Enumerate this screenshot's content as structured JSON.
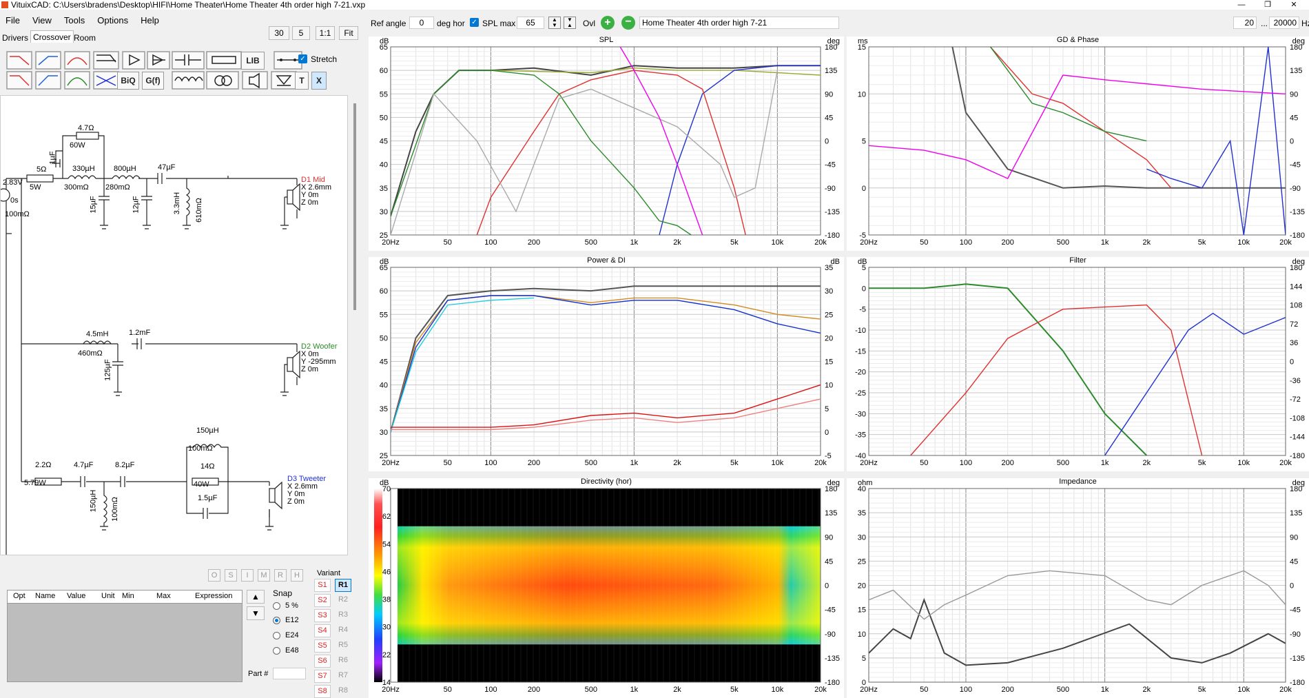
{
  "window": {
    "title": "VituixCAD: C:\\Users\\bradens\\Desktop\\HIFI\\Home Theater\\Home Theater 4th order high 7-21.vxp"
  },
  "menu": [
    "File",
    "View",
    "Tools",
    "Options",
    "Help"
  ],
  "tabs": [
    "Drivers",
    "Crossover",
    "Room"
  ],
  "left_buttons": {
    "b30": "30",
    "b5": "5",
    "b11": "1:1",
    "fit": "Fit",
    "stretch": "Stretch"
  },
  "tool_row1": [
    "LIB"
  ],
  "tool_row2": [
    "BiQ",
    "G(f)",
    "T",
    "X"
  ],
  "toolbar": {
    "ref_angle_label": "Ref angle",
    "ref_angle_value": "0",
    "deg_hor": "deg hor",
    "spl_max_label": "SPL max",
    "spl_max_value": "65",
    "ovl_label": "Ovl",
    "overlay_name": "Home Theater 4th order high 7-21",
    "freq_min": "20",
    "ellipsis": "...",
    "freq_max": "20000",
    "hz_unit": "Hz"
  },
  "schematic": {
    "labels": [
      {
        "id": "r47",
        "text": "4.7Ω"
      },
      {
        "id": "w60",
        "text": "60W"
      },
      {
        "id": "c1u",
        "text": "1µF"
      },
      {
        "id": "r5",
        "text": "5Ω"
      },
      {
        "id": "w5",
        "text": "5W"
      },
      {
        "id": "l330",
        "text": "330µH"
      },
      {
        "id": "r300",
        "text": "300mΩ"
      },
      {
        "id": "l800",
        "text": "800µH"
      },
      {
        "id": "r280",
        "text": "280mΩ"
      },
      {
        "id": "c47",
        "text": "47µF"
      },
      {
        "id": "c15",
        "text": "15µF"
      },
      {
        "id": "c12",
        "text": "12µF"
      },
      {
        "id": "l33m",
        "text": "3.3mH"
      },
      {
        "id": "r610",
        "text": "610mΩ"
      },
      {
        "id": "v283",
        "text": "2.83V"
      },
      {
        "id": "s0",
        "text": "0s"
      },
      {
        "id": "r100",
        "text": "100mΩ"
      },
      {
        "id": "l45m",
        "text": "4.5mH"
      },
      {
        "id": "r460",
        "text": "460mΩ"
      },
      {
        "id": "c12m",
        "text": "1.2mF"
      },
      {
        "id": "c125",
        "text": "125µF"
      },
      {
        "id": "l150a",
        "text": "150µH"
      },
      {
        "id": "r100b",
        "text": "100mΩ"
      },
      {
        "id": "r14",
        "text": "14Ω"
      },
      {
        "id": "w40",
        "text": "40W"
      },
      {
        "id": "c15b",
        "text": "1.5µF"
      },
      {
        "id": "r22",
        "text": "2.2Ω"
      },
      {
        "id": "w579",
        "text": "5.79W"
      },
      {
        "id": "c47b",
        "text": "4.7µF"
      },
      {
        "id": "c82",
        "text": "8.2µF"
      },
      {
        "id": "l150b",
        "text": "150µH"
      },
      {
        "id": "r100c",
        "text": "100mΩ"
      }
    ],
    "drivers": [
      {
        "name": "D1 Mid",
        "color": "#e03030",
        "x": "X 2.6mm",
        "y": "Y 0m",
        "z": "Z 0m"
      },
      {
        "name": "D2 Woofer",
        "color": "#2a8a2a",
        "x": "X 0m",
        "y": "Y -295mm",
        "z": "Z 0m"
      },
      {
        "name": "D3 Tweeter",
        "color": "#2030d0",
        "x": "X 2.6mm",
        "y": "Y 0m",
        "z": "Z 0m"
      }
    ]
  },
  "opt_buttons": [
    "O",
    "S",
    "I",
    "M",
    "R",
    "H"
  ],
  "opt_table": {
    "columns": [
      "Opt",
      "Name",
      "Value",
      "Unit",
      "Min",
      "Max",
      "Expression"
    ]
  },
  "snap": {
    "title": "Snap",
    "options": [
      "5 %",
      "E12",
      "E24",
      "E48"
    ],
    "selected": "E12"
  },
  "part_label": "Part #",
  "variant": {
    "title": "Variant",
    "s": [
      "S1",
      "S2",
      "S3",
      "S4",
      "S5",
      "S6",
      "S7",
      "S8"
    ],
    "r": [
      "R1",
      "R2",
      "R3",
      "R4",
      "R5",
      "R6",
      "R7",
      "R8"
    ],
    "active": "R1"
  },
  "colors": {
    "mid": "#e03030",
    "woofer": "#2a8a2a",
    "tweeter": "#2030d0",
    "sum": "#444444",
    "accent": "#0078d4"
  },
  "chart_data": [
    {
      "type": "line",
      "title": "SPL",
      "ylabel": "dB",
      "y2label": "deg",
      "ylim": [
        25,
        65
      ],
      "y2lim": [
        -180,
        180
      ],
      "xticks": [
        "20Hz",
        "50",
        "100",
        "200",
        "500",
        "1k",
        "2k",
        "5k",
        "10k",
        "20k"
      ],
      "yticks": [
        "65",
        "60",
        "55",
        "50",
        "45",
        "40",
        "35",
        "30",
        "25"
      ],
      "y2ticks": [
        "180",
        "135",
        "90",
        "45",
        "0",
        "-45",
        "-90",
        "-135",
        "-180"
      ],
      "series": [
        {
          "color": "#444444",
          "x": [
            20,
            30,
            40,
            60,
            100,
            200,
            500,
            1000,
            2000,
            5000,
            10000,
            20000
          ],
          "y": [
            29,
            47,
            55,
            60,
            60,
            60.5,
            59,
            61,
            60.5,
            60.5,
            61,
            61
          ]
        },
        {
          "color": "#9aaa30",
          "x": [
            100,
            500,
            1000,
            2000,
            5000,
            10000,
            20000
          ],
          "y": [
            60,
            59.5,
            60.5,
            60,
            60,
            59.5,
            59
          ]
        },
        {
          "color": "#2030d0",
          "x": [
            1500,
            2000,
            3000,
            5000,
            10000,
            20000
          ],
          "y": [
            25,
            40,
            55,
            60,
            61,
            61
          ]
        },
        {
          "color": "#e03030",
          "x": [
            80,
            100,
            200,
            300,
            500,
            1000,
            2000,
            3000,
            5000,
            6000
          ],
          "y": [
            25,
            33,
            47,
            55,
            58,
            60,
            59,
            56,
            35,
            25
          ]
        },
        {
          "color": "#2a8a2a",
          "x": [
            20,
            40,
            60,
            100,
            200,
            300,
            500,
            1000,
            1500,
            2000,
            2500
          ],
          "y": [
            29,
            55,
            60,
            60,
            59,
            55,
            45,
            35,
            28,
            27,
            25
          ]
        },
        {
          "color": "#aaaaaa",
          "x": [
            20,
            40,
            80,
            150,
            300,
            500,
            1000,
            2000,
            4000,
            5000,
            7000,
            10000
          ],
          "y": [
            25,
            55,
            45,
            30,
            54,
            56,
            52,
            48,
            40,
            33,
            35,
            60
          ]
        },
        {
          "color": "#ee00ee",
          "x": [
            800,
            1000,
            1500,
            2000,
            3000
          ],
          "y": [
            65,
            60,
            50,
            40,
            25
          ]
        }
      ]
    },
    {
      "type": "line",
      "title": "GD & Phase",
      "ylabel": "ms",
      "y2label": "deg",
      "ylim": [
        -5,
        15
      ],
      "y2lim": [
        -180,
        180
      ],
      "xticks": [
        "20Hz",
        "50",
        "100",
        "200",
        "500",
        "1k",
        "2k",
        "5k",
        "10k",
        "20k"
      ],
      "yticks": [
        "15",
        "10",
        "5",
        "0",
        "-5"
      ],
      "y2ticks": [
        "180",
        "135",
        "90",
        "45",
        "0",
        "-45",
        "-90",
        "-135",
        "-180"
      ],
      "series": [
        {
          "color": "#555555",
          "x": [
            80,
            100,
            200,
            500,
            1000,
            2000,
            5000,
            20000
          ],
          "y": [
            15,
            8,
            2,
            0,
            0.2,
            0,
            0,
            0
          ]
        },
        {
          "color": "#e03030",
          "x": [
            150,
            300,
            500,
            1000,
            2000,
            3000
          ],
          "y": [
            15,
            10,
            9,
            6,
            3,
            0
          ]
        },
        {
          "color": "#2a8a2a",
          "x": [
            150,
            300,
            500,
            1000,
            2000
          ],
          "y": [
            15,
            9,
            8,
            6,
            5
          ]
        },
        {
          "color": "#2030d0",
          "x": [
            2000,
            3000,
            5000,
            8000,
            10000,
            15000,
            20000
          ],
          "y": [
            2,
            1,
            0,
            5,
            -5,
            15,
            -5
          ]
        },
        {
          "color": "#ee00ee",
          "x": [
            20,
            50,
            100,
            200,
            500,
            1000,
            5000,
            20000
          ],
          "y": [
            4.5,
            4,
            3,
            1,
            12,
            11.5,
            10.5,
            10
          ]
        }
      ]
    },
    {
      "type": "line",
      "title": "Power & DI",
      "ylabel": "dB",
      "y2label": "dB",
      "ylim": [
        25,
        65
      ],
      "y2lim": [
        -5,
        35
      ],
      "xticks": [
        "20Hz",
        "50",
        "100",
        "200",
        "500",
        "1k",
        "2k",
        "5k",
        "10k",
        "20k"
      ],
      "yticks": [
        "65",
        "60",
        "55",
        "50",
        "45",
        "40",
        "35",
        "30",
        "25"
      ],
      "y2ticks": [
        "35",
        "30",
        "25",
        "20",
        "15",
        "10",
        "5",
        "0",
        "-5"
      ],
      "series": [
        {
          "color": "#555555",
          "x": [
            20,
            30,
            50,
            100,
            200,
            500,
            1000,
            2000,
            5000,
            10000,
            20000
          ],
          "y": [
            30,
            50,
            59,
            60,
            60.5,
            60,
            61,
            61,
            61,
            61,
            61
          ]
        },
        {
          "color": "#d08a20",
          "x": [
            20,
            30,
            50,
            100,
            200,
            500,
            1000,
            2000,
            5000,
            10000,
            20000
          ],
          "y": [
            30,
            49,
            58,
            59,
            59,
            57.5,
            58.5,
            58.5,
            57,
            55,
            54
          ]
        },
        {
          "color": "#1030d0",
          "x": [
            20,
            30,
            50,
            100,
            200,
            500,
            1000,
            2000,
            5000,
            10000,
            20000
          ],
          "y": [
            30,
            48,
            58,
            59,
            59,
            57,
            58,
            58,
            56,
            53,
            51
          ]
        },
        {
          "color": "#22cce0",
          "x": [
            20,
            30,
            50,
            100,
            200
          ],
          "y": [
            30,
            47,
            57,
            58,
            58.5
          ]
        },
        {
          "color": "#dd1010",
          "x": [
            20,
            50,
            100,
            200,
            500,
            1000,
            2000,
            5000,
            10000,
            20000
          ],
          "y": [
            31,
            31,
            31,
            31.5,
            33.5,
            34,
            33,
            34,
            37,
            40
          ]
        },
        {
          "color": "#f08080",
          "x": [
            20,
            50,
            100,
            200,
            500,
            1000,
            2000,
            5000,
            10000,
            20000
          ],
          "y": [
            30.5,
            30.5,
            30.5,
            31,
            32.5,
            33,
            32,
            33,
            35,
            37
          ]
        }
      ]
    },
    {
      "type": "line",
      "title": "Filter",
      "ylabel": "dB",
      "y2label": "deg",
      "ylim": [
        -40,
        5
      ],
      "y2lim": [
        -180,
        180
      ],
      "xticks": [
        "20Hz",
        "50",
        "100",
        "200",
        "500",
        "1k",
        "2k",
        "5k",
        "10k",
        "20k"
      ],
      "yticks": [
        "5",
        "0",
        "-5",
        "-10",
        "-15",
        "-20",
        "-25",
        "-30",
        "-35",
        "-40"
      ],
      "y2ticks": [
        "180",
        "144",
        "108",
        "72",
        "36",
        "0",
        "-36",
        "-72",
        "-108",
        "-144",
        "-180"
      ],
      "series": [
        {
          "color": "#2a8a2a",
          "x": [
            20,
            50,
            100,
            200,
            500,
            1000,
            2000
          ],
          "y": [
            0,
            0,
            1,
            0,
            -15,
            -30,
            -40
          ]
        },
        {
          "color": "#e03030",
          "x": [
            40,
            100,
            200,
            500,
            1000,
            2000,
            3000,
            5000
          ],
          "y": [
            -40,
            -25,
            -12,
            -5,
            -4.5,
            -4,
            -10,
            -40
          ]
        },
        {
          "color": "#2030d0",
          "x": [
            1000,
            2000,
            4000,
            6000,
            10000,
            20000
          ],
          "y": [
            -40,
            -25,
            -10,
            -6,
            -11,
            -7
          ]
        }
      ]
    },
    {
      "type": "heatmap",
      "title": "Directivity (hor)",
      "ylabel": "dB",
      "y2label": "deg",
      "scale": [
        70,
        62,
        54,
        46,
        38,
        30,
        22,
        14
      ],
      "y2lim": [
        -180,
        180
      ],
      "xticks": [
        "20Hz",
        "50",
        "100",
        "200",
        "500",
        "1k",
        "2k",
        "5k",
        "10k",
        "20k"
      ],
      "y2ticks": [
        "180",
        "135",
        "90",
        "45",
        "0",
        "-45",
        "-90",
        "-135",
        "-180"
      ]
    },
    {
      "type": "line",
      "title": "Impedance",
      "ylabel": "ohm",
      "y2label": "deg",
      "ylim": [
        0,
        40
      ],
      "y2lim": [
        -180,
        180
      ],
      "xticks": [
        "20Hz",
        "50",
        "100",
        "200",
        "500",
        "1k",
        "2k",
        "5k",
        "10k",
        "20k"
      ],
      "yticks": [
        "40",
        "35",
        "30",
        "25",
        "20",
        "15",
        "10",
        "5",
        "0"
      ],
      "y2ticks": [
        "180",
        "135",
        "90",
        "45",
        "0",
        "-45",
        "-90",
        "-135",
        "-180"
      ],
      "series": [
        {
          "color": "#444444",
          "x": [
            20,
            30,
            40,
            50,
            70,
            100,
            200,
            500,
            1500,
            3000,
            5000,
            8000,
            15000,
            20000
          ],
          "y": [
            6,
            11,
            9,
            17,
            6,
            3.5,
            4,
            7,
            12,
            5,
            4,
            6,
            10,
            8
          ]
        },
        {
          "color": "#999999",
          "x": [
            20,
            30,
            50,
            70,
            100,
            200,
            400,
            1000,
            2000,
            3000,
            5000,
            10000,
            15000,
            20000
          ],
          "y": [
            17,
            19,
            13,
            16,
            18,
            22,
            23,
            22,
            17,
            16,
            20,
            23,
            20,
            16
          ]
        }
      ]
    }
  ]
}
